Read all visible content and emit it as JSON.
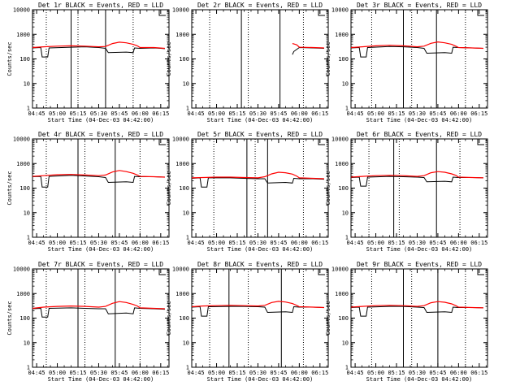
{
  "figure": {
    "x_tick_labels": [
      "04:45",
      "05:00",
      "05:15",
      "05:30",
      "05:45",
      "06:00",
      "06:15"
    ],
    "y_tick_labels": [
      "1",
      "10",
      "100",
      "1000",
      "10000"
    ],
    "xlabel": "Start Time (04-Dec-03 04:42:00)",
    "ylabel": "Counts/sec",
    "colors": {
      "events": "#000000",
      "lld": "#ff0000",
      "axes": "#000000"
    }
  },
  "chart_data": [
    {
      "type": "line",
      "title": "Det 1r BLACK = Events, RED = LLD",
      "xlim": [
        "04:42",
        "06:21"
      ],
      "ylim": [
        1,
        10000
      ],
      "yscale": "log",
      "series": [
        {
          "key": "events",
          "x": [
            "04:42",
            "04:48",
            "04:49",
            "04:53",
            "04:54",
            "05:10",
            "05:20",
            "05:30",
            "05:35",
            "05:37",
            "05:50",
            "05:55",
            "05:56",
            "06:00",
            "06:10",
            "06:15",
            "06:18"
          ],
          "values": [
            280,
            290,
            120,
            120,
            280,
            300,
            310,
            290,
            270,
            180,
            190,
            180,
            280,
            270,
            280,
            270,
            260
          ]
        },
        {
          "key": "lld",
          "x": [
            "04:42",
            "04:50",
            "05:00",
            "05:10",
            "05:20",
            "05:30",
            "05:35",
            "05:40",
            "05:45",
            "05:50",
            "05:55",
            "05:58",
            "06:00",
            "06:10",
            "06:18"
          ],
          "values": [
            290,
            310,
            330,
            340,
            330,
            310,
            320,
            420,
            480,
            450,
            390,
            340,
            290,
            290,
            270
          ]
        }
      ],
      "solid_vlines": [
        "05:10",
        "05:35"
      ],
      "dotted_vlines": [
        "04:52",
        "05:15",
        "05:55"
      ]
    },
    {
      "type": "line",
      "title": "Det 2r BLACK = Events, RED = LLD",
      "xlim": [
        "04:42",
        "06:21"
      ],
      "ylim": [
        1,
        10000
      ],
      "yscale": "log",
      "series": [
        {
          "key": "events",
          "x": [
            "05:55",
            "05:56",
            "06:00",
            "06:10",
            "06:18"
          ],
          "values": [
            150,
            200,
            290,
            280,
            270
          ]
        },
        {
          "key": "lld",
          "x": [
            "05:55",
            "05:58",
            "06:00",
            "06:10",
            "06:18"
          ],
          "values": [
            420,
            380,
            300,
            290,
            280
          ]
        }
      ],
      "solid_vlines": [
        "05:18",
        "05:46"
      ],
      "dotted_vlines": [
        "04:55",
        "05:23",
        "06:03"
      ]
    },
    {
      "type": "line",
      "title": "Det 3r BLACK = Events, RED = LLD",
      "xlim": [
        "04:42",
        "06:21"
      ],
      "ylim": [
        1,
        10000
      ],
      "yscale": "log",
      "series": [
        {
          "key": "events",
          "x": [
            "04:42",
            "04:48",
            "04:49",
            "04:53",
            "04:54",
            "05:10",
            "05:20",
            "05:30",
            "05:35",
            "05:37",
            "05:50",
            "05:55",
            "05:56",
            "06:00",
            "06:10",
            "06:18"
          ],
          "values": [
            280,
            290,
            120,
            120,
            290,
            320,
            310,
            290,
            270,
            170,
            180,
            170,
            300,
            290,
            280,
            270
          ]
        },
        {
          "key": "lld",
          "x": [
            "04:42",
            "04:50",
            "05:00",
            "05:10",
            "05:20",
            "05:30",
            "05:35",
            "05:40",
            "05:45",
            "05:50",
            "05:55",
            "05:58",
            "06:00",
            "06:10",
            "06:18"
          ],
          "values": [
            290,
            310,
            340,
            360,
            340,
            310,
            330,
            430,
            490,
            450,
            390,
            330,
            290,
            280,
            270
          ]
        }
      ],
      "solid_vlines": [
        "05:20",
        "05:44"
      ],
      "dotted_vlines": [
        "04:57",
        "05:26",
        "06:05"
      ]
    },
    {
      "type": "line",
      "title": "Det 4r BLACK = Events, RED = LLD",
      "xlim": [
        "04:42",
        "06:21"
      ],
      "ylim": [
        1,
        10000
      ],
      "yscale": "log",
      "series": [
        {
          "key": "events",
          "x": [
            "04:42",
            "04:48",
            "04:49",
            "04:53",
            "04:54",
            "05:10",
            "05:20",
            "05:30",
            "05:35",
            "05:37",
            "05:50",
            "05:55",
            "05:56",
            "06:00",
            "06:10",
            "06:18"
          ],
          "values": [
            290,
            300,
            110,
            110,
            300,
            330,
            310,
            290,
            270,
            170,
            180,
            170,
            300,
            290,
            290,
            280
          ]
        },
        {
          "key": "lld",
          "x": [
            "04:42",
            "04:50",
            "05:00",
            "05:10",
            "05:20",
            "05:30",
            "05:35",
            "05:40",
            "05:45",
            "05:50",
            "05:55",
            "05:58",
            "06:00",
            "06:10",
            "06:18"
          ],
          "values": [
            300,
            320,
            350,
            360,
            340,
            320,
            340,
            450,
            520,
            470,
            400,
            340,
            300,
            290,
            280
          ]
        }
      ],
      "solid_vlines": [
        "05:15",
        "05:42"
      ],
      "dotted_vlines": [
        "04:52",
        "05:20",
        "06:00"
      ]
    },
    {
      "type": "line",
      "title": "Det 5r BLACK = Events, RED = LLD",
      "xlim": [
        "04:42",
        "06:21"
      ],
      "ylim": [
        1,
        10000
      ],
      "yscale": "log",
      "series": [
        {
          "key": "events",
          "x": [
            "04:42",
            "04:48",
            "04:49",
            "04:53",
            "04:54",
            "05:10",
            "05:20",
            "05:30",
            "05:35",
            "05:37",
            "05:50",
            "05:55",
            "05:56",
            "06:00",
            "06:10",
            "06:18"
          ],
          "values": [
            250,
            260,
            110,
            110,
            260,
            260,
            250,
            240,
            240,
            160,
            170,
            160,
            250,
            240,
            240,
            230
          ]
        },
        {
          "key": "lld",
          "x": [
            "04:42",
            "04:50",
            "05:00",
            "05:10",
            "05:20",
            "05:30",
            "05:35",
            "05:40",
            "05:45",
            "05:50",
            "05:55",
            "05:58",
            "06:00",
            "06:10",
            "06:18"
          ],
          "values": [
            260,
            270,
            280,
            280,
            270,
            260,
            290,
            380,
            440,
            420,
            370,
            310,
            260,
            250,
            240
          ]
        }
      ],
      "solid_vlines": [
        "05:22",
        "05:37"
      ],
      "dotted_vlines": [
        "04:58",
        "05:28",
        "06:03"
      ]
    },
    {
      "type": "line",
      "title": "Det 6r BLACK = Events, RED = LLD",
      "xlim": [
        "04:42",
        "06:21"
      ],
      "ylim": [
        1,
        10000
      ],
      "yscale": "log",
      "series": [
        {
          "key": "events",
          "x": [
            "04:42",
            "04:48",
            "04:49",
            "04:53",
            "04:54",
            "05:10",
            "05:20",
            "05:30",
            "05:35",
            "05:37",
            "05:50",
            "05:55",
            "05:56",
            "06:00",
            "06:10",
            "06:18"
          ],
          "values": [
            270,
            280,
            120,
            120,
            280,
            300,
            290,
            280,
            270,
            180,
            190,
            180,
            280,
            270,
            270,
            260
          ]
        },
        {
          "key": "lld",
          "x": [
            "04:42",
            "04:50",
            "05:00",
            "05:10",
            "05:20",
            "05:30",
            "05:35",
            "05:40",
            "05:45",
            "05:50",
            "05:55",
            "05:58",
            "06:00",
            "06:10",
            "06:18"
          ],
          "values": [
            280,
            300,
            320,
            330,
            320,
            300,
            320,
            420,
            470,
            440,
            380,
            330,
            280,
            270,
            260
          ]
        }
      ],
      "solid_vlines": [
        "05:13",
        "05:44"
      ],
      "dotted_vlines": [
        "04:55",
        "05:17",
        "06:01"
      ]
    },
    {
      "type": "line",
      "title": "Det 7r BLACK = Events, RED = LLD",
      "xlim": [
        "04:42",
        "06:21"
      ],
      "ylim": [
        1,
        10000
      ],
      "yscale": "log",
      "series": [
        {
          "key": "events",
          "x": [
            "04:42",
            "04:48",
            "04:49",
            "04:53",
            "04:54",
            "05:10",
            "05:20",
            "05:30",
            "05:35",
            "05:37",
            "05:50",
            "05:55",
            "05:56",
            "06:00",
            "06:10",
            "06:18"
          ],
          "values": [
            240,
            250,
            110,
            110,
            250,
            260,
            250,
            240,
            240,
            150,
            160,
            150,
            260,
            250,
            240,
            230
          ]
        },
        {
          "key": "lld",
          "x": [
            "04:42",
            "04:50",
            "05:00",
            "05:10",
            "05:20",
            "05:30",
            "05:35",
            "05:40",
            "05:45",
            "05:50",
            "05:55",
            "05:58",
            "06:00",
            "06:10",
            "06:18"
          ],
          "values": [
            250,
            280,
            300,
            310,
            300,
            280,
            300,
            400,
            470,
            430,
            360,
            310,
            260,
            250,
            240
          ]
        }
      ],
      "solid_vlines": [
        "05:15",
        "05:42"
      ],
      "dotted_vlines": [
        "04:52",
        "05:20",
        "06:00"
      ]
    },
    {
      "type": "line",
      "title": "Det 8r BLACK = Events, RED = LLD",
      "xlim": [
        "04:42",
        "06:21"
      ],
      "ylim": [
        1,
        10000
      ],
      "yscale": "log",
      "series": [
        {
          "key": "events",
          "x": [
            "04:42",
            "04:48",
            "04:49",
            "04:53",
            "04:54",
            "05:10",
            "05:20",
            "05:30",
            "05:35",
            "05:37",
            "05:50",
            "05:55",
            "05:56",
            "06:00",
            "06:10",
            "06:18"
          ],
          "values": [
            280,
            290,
            120,
            120,
            290,
            300,
            300,
            290,
            280,
            170,
            180,
            170,
            290,
            280,
            280,
            270
          ]
        },
        {
          "key": "lld",
          "x": [
            "04:42",
            "04:50",
            "05:00",
            "05:10",
            "05:20",
            "05:30",
            "05:35",
            "05:40",
            "05:45",
            "05:50",
            "05:55",
            "05:58",
            "06:00",
            "06:10",
            "06:18"
          ],
          "values": [
            290,
            310,
            320,
            330,
            320,
            310,
            330,
            430,
            480,
            450,
            390,
            330,
            290,
            280,
            270
          ]
        }
      ],
      "solid_vlines": [
        "05:09",
        "05:47"
      ],
      "dotted_vlines": [
        "04:55",
        "05:23",
        "06:03"
      ]
    },
    {
      "type": "line",
      "title": "Det 9r BLACK = Events, RED = LLD",
      "xlim": [
        "04:42",
        "06:21"
      ],
      "ylim": [
        1,
        10000
      ],
      "yscale": "log",
      "series": [
        {
          "key": "events",
          "x": [
            "04:42",
            "04:48",
            "04:49",
            "04:53",
            "04:54",
            "05:10",
            "05:20",
            "05:30",
            "05:35",
            "05:37",
            "05:50",
            "05:55",
            "05:56",
            "06:00",
            "06:10",
            "06:18"
          ],
          "values": [
            270,
            280,
            120,
            120,
            280,
            300,
            300,
            280,
            270,
            170,
            180,
            170,
            280,
            270,
            270,
            260
          ]
        },
        {
          "key": "lld",
          "x": [
            "04:42",
            "04:50",
            "05:00",
            "05:10",
            "05:20",
            "05:30",
            "05:35",
            "05:40",
            "05:45",
            "05:50",
            "05:55",
            "05:58",
            "06:00",
            "06:10",
            "06:18"
          ],
          "values": [
            280,
            300,
            320,
            330,
            320,
            300,
            320,
            420,
            470,
            440,
            380,
            320,
            280,
            270,
            260
          ]
        }
      ],
      "solid_vlines": [
        "05:20",
        "05:45"
      ],
      "dotted_vlines": [
        "04:57",
        "05:26",
        "06:05"
      ]
    }
  ]
}
